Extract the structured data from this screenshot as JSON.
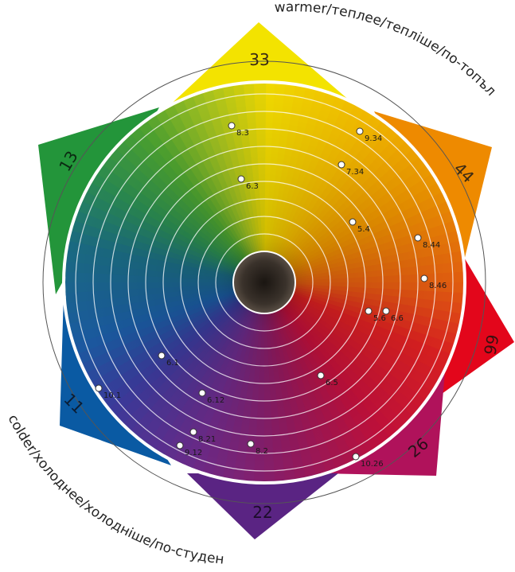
{
  "caption_warm": "warmer/теплее/тепліше/по-топъл",
  "caption_cold": "colder/холоднее/холодніше/по-студен",
  "sectors": [
    {
      "label": "33",
      "color": "#f3e300"
    },
    {
      "label": "44",
      "color": "#ee8a00"
    },
    {
      "label": "66",
      "color": "#e3061b"
    },
    {
      "label": "26",
      "color": "#b0125b"
    },
    {
      "label": "22",
      "color": "#5a2483"
    },
    {
      "label": "11",
      "color": "#0a5aa3"
    },
    {
      "label": "13",
      "color": "#23953a"
    }
  ],
  "points": [
    {
      "label": "8.3"
    },
    {
      "label": "9.34"
    },
    {
      "label": "7.34"
    },
    {
      "label": "6.3"
    },
    {
      "label": "5.4"
    },
    {
      "label": "8.44"
    },
    {
      "label": "8.46"
    },
    {
      "label": "5.6"
    },
    {
      "label": "6.6"
    },
    {
      "label": "6.5"
    },
    {
      "label": "6.1"
    },
    {
      "label": "10.1"
    },
    {
      "label": "6.12"
    },
    {
      "label": "8.21"
    },
    {
      "label": "9.12"
    },
    {
      "label": "8.2"
    },
    {
      "label": "10.26"
    }
  ]
}
